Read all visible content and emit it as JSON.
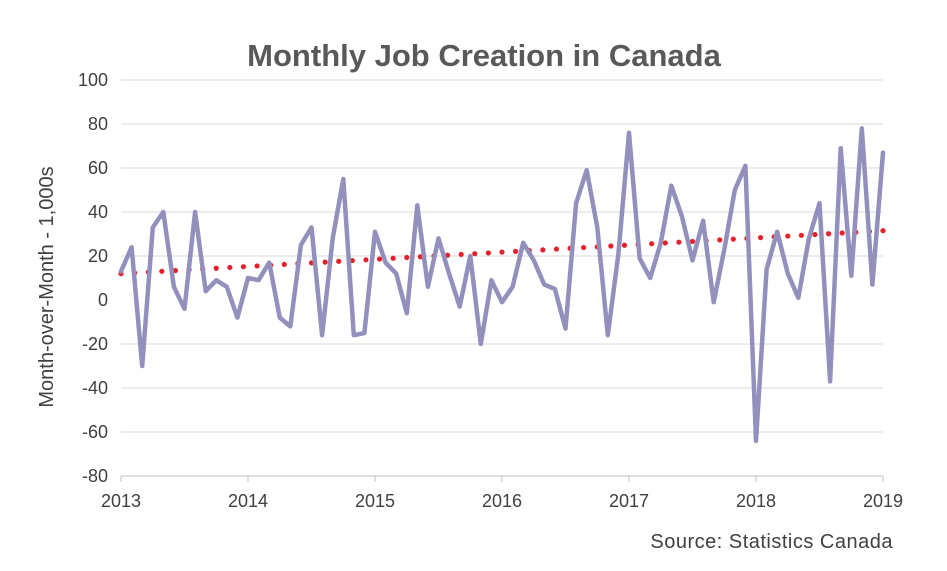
{
  "chart_data": {
    "type": "line",
    "title": "Monthly Job Creation in Canada",
    "ylabel": "Month-over-Month  - 1,000s",
    "xlabel": "",
    "source": "Source: Statistics Canada",
    "ylim": [
      -80,
      100
    ],
    "yticks": [
      -80,
      -60,
      -40,
      -20,
      0,
      20,
      40,
      60,
      80,
      100
    ],
    "xticks": [
      "2013",
      "2014",
      "2015",
      "2016",
      "2017",
      "2018",
      "2019"
    ],
    "x_start_year": 2013,
    "grid": true,
    "series": [
      {
        "role": "data",
        "color": "#9490bd",
        "values": [
          13,
          24,
          -30,
          33,
          40,
          6,
          -4,
          40,
          4,
          9,
          6,
          -8,
          10,
          9,
          17,
          -8,
          -12,
          25,
          33,
          -16,
          28,
          55,
          -16,
          -15,
          31,
          17,
          12,
          -6,
          43,
          6,
          28,
          12,
          -3,
          20,
          -20,
          9,
          -1,
          6,
          26,
          18,
          7,
          5,
          -13,
          44,
          59,
          33,
          -16,
          21,
          76,
          19,
          10,
          26,
          52,
          38,
          18,
          36,
          -1,
          23,
          50,
          61,
          -64,
          14,
          31,
          12,
          1,
          28,
          44,
          -37,
          69,
          11,
          78,
          7,
          67
        ]
      },
      {
        "role": "trend",
        "color": "#e8202a",
        "style": "dotted",
        "start": 12,
        "end": 31.5
      }
    ]
  }
}
